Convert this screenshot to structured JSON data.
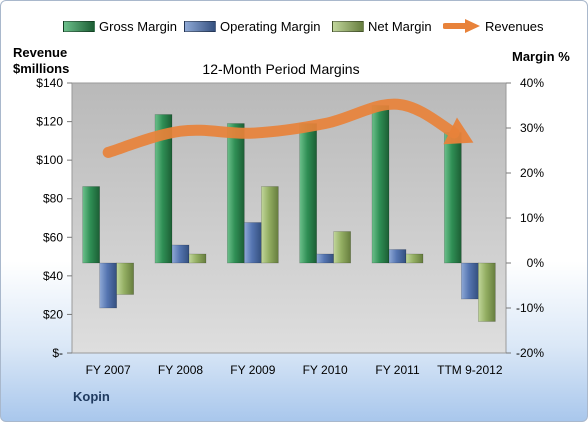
{
  "chart_data": {
    "type": "bar",
    "title": "12-Month Period Margins",
    "categories": [
      "FY 2007",
      "FY 2008",
      "FY 2009",
      "FY 2010",
      "FY 2011",
      "TTM 9-2012"
    ],
    "series": [
      {
        "name": "Gross Margin",
        "axis": "right",
        "unit": "%",
        "color": "#1f7a43",
        "values": [
          17,
          33,
          31,
          31,
          35,
          29
        ]
      },
      {
        "name": "Operating Margin",
        "axis": "right",
        "unit": "%",
        "color": "#4f6fab",
        "values": [
          -10,
          4,
          9,
          2,
          3,
          -8
        ]
      },
      {
        "name": "Net Margin",
        "axis": "right",
        "unit": "%",
        "color": "#8aa55a",
        "values": [
          -7,
          2,
          17,
          7,
          2,
          -13
        ]
      },
      {
        "name": "Revenues",
        "axis": "left",
        "unit": "$ millions",
        "type": "line-arrow",
        "color": "#e8823a",
        "values": [
          104,
          115,
          114,
          119,
          129,
          110
        ]
      }
    ],
    "left_axis": {
      "title_line1": "Revenue",
      "title_line2": "$millions",
      "ylim": [
        0,
        140
      ],
      "ticks": [
        0,
        20,
        40,
        60,
        80,
        100,
        120,
        140
      ],
      "tick_labels": [
        "$-",
        "$20",
        "$40",
        "$60",
        "$80",
        "$100",
        "$120",
        "$140"
      ]
    },
    "right_axis": {
      "title": "Margin %",
      "ylim": [
        -20,
        40
      ],
      "ticks": [
        -20,
        -10,
        0,
        10,
        20,
        30,
        40
      ],
      "tick_labels": [
        "-20%",
        "-10%",
        "0%",
        "10%",
        "20%",
        "30%",
        "40%"
      ]
    },
    "legend_position": "top",
    "grid": false,
    "plot_background": "gray-gradient",
    "company": "Kopin"
  },
  "colors": {
    "gross": "#1f7a43",
    "operating": "#4f6fab",
    "net": "#8aa55a",
    "revenue": "#e8823a"
  }
}
